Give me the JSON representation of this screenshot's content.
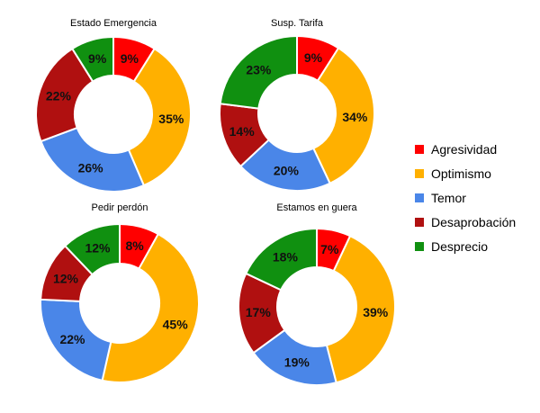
{
  "chart_data": [
    {
      "type": "pie",
      "title": "Estado Emergencia",
      "categories": [
        "Agresividad",
        "Optimismo",
        "Temor",
        "Desaprobación",
        "Desprecio"
      ],
      "values": [
        9,
        35,
        26,
        22,
        9
      ],
      "labels": [
        "9%",
        "35%",
        "26%",
        "22%",
        "9%"
      ]
    },
    {
      "type": "pie",
      "title": "Susp. Tarifa",
      "categories": [
        "Agresividad",
        "Optimismo",
        "Temor",
        "Desaprobación",
        "Desprecio"
      ],
      "values": [
        9,
        34,
        20,
        14,
        23
      ],
      "labels": [
        "9%",
        "34%",
        "20%",
        "14%",
        "23%"
      ]
    },
    {
      "type": "pie",
      "title": "Pedir perdón",
      "categories": [
        "Agresividad",
        "Optimismo",
        "Temor",
        "Desaprobación",
        "Desprecio"
      ],
      "values": [
        8,
        45,
        22,
        12,
        12
      ],
      "labels": [
        "8%",
        "45%",
        "22%",
        "12%",
        "12%"
      ]
    },
    {
      "type": "pie",
      "title": "Estamos en guera",
      "categories": [
        "Agresividad",
        "Optimismo",
        "Temor",
        "Desaprobación",
        "Desprecio"
      ],
      "values": [
        7,
        39,
        19,
        17,
        18
      ],
      "labels": [
        "7%",
        "39%",
        "19%",
        "17%",
        "18%"
      ]
    }
  ],
  "legend": {
    "placement": "right",
    "items": [
      {
        "label": "Agresividad",
        "color": "#ff0000"
      },
      {
        "label": "Optimismo",
        "color": "#ffb000"
      },
      {
        "label": "Temor",
        "color": "#4a86e8"
      },
      {
        "label": "Desaprobación",
        "color": "#b01010"
      },
      {
        "label": "Desprecio",
        "color": "#109010"
      }
    ]
  }
}
